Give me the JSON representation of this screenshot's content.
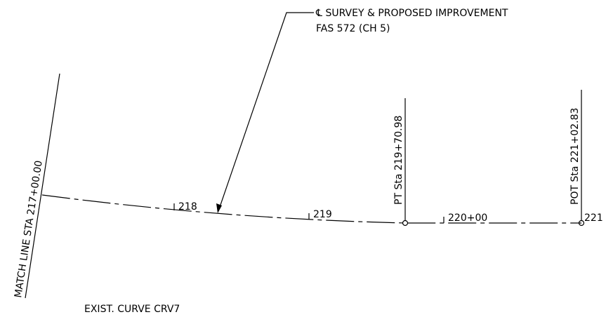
{
  "labels": {
    "alignment": "℄ SURVEY & PROPOSED IMPROVEMENT",
    "route": "FAS 572 (CH 5)",
    "match_line": "MATCH LINE STA 217+00.00",
    "sta_218": "218",
    "sta_219": "219",
    "pt": "PT Sta 219+70.98",
    "sta_220": "220+00",
    "pot": "POT Sta 221+02.83",
    "sta_221": "221",
    "curve": "EXIST. CURVE CRV7"
  }
}
